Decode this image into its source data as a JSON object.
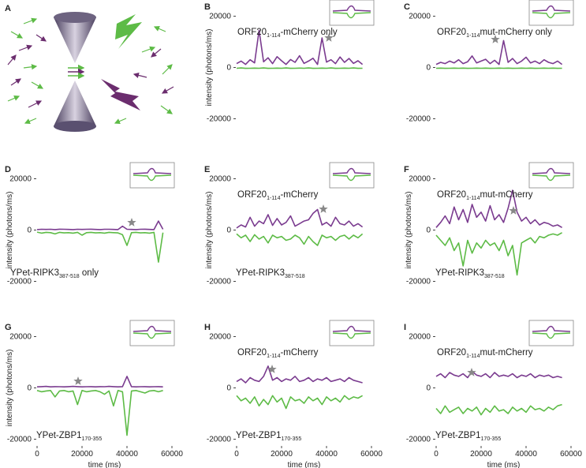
{
  "panel_a": {
    "letter": "A"
  },
  "chart_data": [
    {
      "type": "line",
      "panel": "B",
      "top_label": {
        "text": "ORF20",
        "sub": "1-114",
        "rest": "-mCherry only"
      },
      "ylabel": "intensity (photons/ms)",
      "xlim": [
        0,
        60000
      ],
      "ylim": [
        -22000,
        22000
      ],
      "yticks": [
        20000,
        0,
        -20000
      ],
      "x": [
        0,
        2000,
        4000,
        6000,
        8000,
        10000,
        12000,
        14000,
        16000,
        18000,
        20000,
        22000,
        24000,
        26000,
        28000,
        30000,
        32000,
        34000,
        36000,
        38000,
        40000,
        42000,
        44000,
        46000,
        48000,
        50000,
        52000,
        54000,
        56000
      ],
      "series": [
        {
          "color": "#5dbb46",
          "values": [
            -300,
            -200,
            -350,
            -300,
            -250,
            -300,
            -200,
            -350,
            -300,
            -250,
            -300,
            -200,
            -350,
            -300,
            -250,
            -300,
            -200,
            -350,
            -300,
            -250,
            -300,
            -200,
            -350,
            -300,
            -250,
            -300,
            -200,
            -350,
            -300
          ]
        },
        {
          "color": "#7a3b8f",
          "values": [
            1500,
            2500,
            1200,
            3000,
            1800,
            14500,
            2200,
            3800,
            1500,
            4200,
            2600,
            1200,
            3100,
            2000,
            4600,
            1600,
            2500,
            3600,
            1200,
            11500,
            2100,
            3000,
            1500,
            4100,
            2000,
            3500,
            1600,
            2600,
            1200
          ]
        }
      ]
    },
    {
      "type": "line",
      "panel": "C",
      "top_label": {
        "text": "ORF20",
        "sub": "1-114",
        "rest": "mut-mCherry only"
      },
      "xlim": [
        0,
        60000
      ],
      "ylim": [
        -22000,
        22000
      ],
      "yticks": [
        20000,
        0,
        -20000
      ],
      "x": [
        0,
        2000,
        4000,
        6000,
        8000,
        10000,
        12000,
        14000,
        16000,
        18000,
        20000,
        22000,
        24000,
        26000,
        28000,
        30000,
        32000,
        34000,
        36000,
        38000,
        40000,
        42000,
        44000,
        46000,
        48000,
        50000,
        52000,
        54000,
        56000
      ],
      "series": [
        {
          "color": "#5dbb46",
          "values": [
            -300,
            -250,
            -350,
            -300,
            -250,
            -300,
            -250,
            -350,
            -300,
            -250,
            -300,
            -250,
            -350,
            -300,
            -250,
            -300,
            -250,
            -350,
            -300,
            -250,
            -300,
            -250,
            -350,
            -300,
            -250,
            -300,
            -250,
            -350,
            -300
          ]
        },
        {
          "color": "#7a3b8f",
          "values": [
            1200,
            2000,
            1500,
            2500,
            1800,
            3000,
            1500,
            2200,
            4500,
            1800,
            2500,
            3200,
            1500,
            2800,
            1200,
            10500,
            2000,
            3500,
            1500,
            2500,
            4000,
            1800,
            2500,
            1500,
            3000,
            2000,
            1500,
            2500,
            1200
          ]
        }
      ]
    },
    {
      "type": "line",
      "panel": "D",
      "bottom_label": {
        "text": "YPet-RIPK3",
        "sub": "387-518",
        "rest": " only"
      },
      "ylabel": "intensity (photons/ms)",
      "xlim": [
        0,
        60000
      ],
      "ylim": [
        -22000,
        22000
      ],
      "yticks": [
        20000,
        0,
        -20000
      ],
      "x": [
        0,
        2000,
        4000,
        6000,
        8000,
        10000,
        12000,
        14000,
        16000,
        18000,
        20000,
        22000,
        24000,
        26000,
        28000,
        30000,
        32000,
        34000,
        36000,
        38000,
        40000,
        42000,
        44000,
        46000,
        48000,
        50000,
        52000,
        54000,
        56000
      ],
      "series": [
        {
          "color": "#5dbb46",
          "values": [
            -800,
            -1200,
            -900,
            -1000,
            -1500,
            -900,
            -1100,
            -1000,
            -1200,
            -900,
            -2000,
            -1000,
            -900,
            -1100,
            -1000,
            -1200,
            -900,
            -1000,
            -1100,
            -1800,
            -6000,
            -1000,
            -900,
            -1100,
            -1000,
            -1200,
            -900,
            -12500,
            -1000
          ]
        },
        {
          "color": "#7a3b8f",
          "values": [
            200,
            300,
            250,
            300,
            200,
            350,
            300,
            250,
            200,
            300,
            250,
            300,
            350,
            250,
            200,
            300,
            300,
            250,
            200,
            1500,
            300,
            250,
            200,
            300,
            350,
            250,
            200,
            3500,
            300
          ]
        }
      ]
    },
    {
      "type": "line",
      "panel": "E",
      "top_label": {
        "text": "ORF20",
        "sub": "1-114",
        "rest": "-mCherry"
      },
      "bottom_label": {
        "text": "YPet-RIPK3",
        "sub": "387-518",
        "rest": ""
      },
      "ylabel": "intensity (photons/ms)",
      "xlim": [
        0,
        60000
      ],
      "ylim": [
        -22000,
        22000
      ],
      "yticks": [
        20000,
        0,
        -20000
      ],
      "x": [
        0,
        2000,
        4000,
        6000,
        8000,
        10000,
        12000,
        14000,
        16000,
        18000,
        20000,
        22000,
        24000,
        26000,
        28000,
        30000,
        32000,
        34000,
        36000,
        38000,
        40000,
        42000,
        44000,
        46000,
        48000,
        50000,
        52000,
        54000,
        56000
      ],
      "series": [
        {
          "color": "#5dbb46",
          "values": [
            -1500,
            -3000,
            -2000,
            -4500,
            -1800,
            -3500,
            -2500,
            -5000,
            -2000,
            -3000,
            -2500,
            -4000,
            -3500,
            -2000,
            -3000,
            -5500,
            -2500,
            -4500,
            -6000,
            -2000,
            -3000,
            -2500,
            -4000,
            -2500,
            -2000,
            -3500,
            -2000,
            -3000,
            -1500
          ]
        },
        {
          "color": "#7a3b8f",
          "values": [
            800,
            2000,
            1200,
            5000,
            1500,
            3500,
            2500,
            6000,
            1800,
            4500,
            2000,
            3000,
            5500,
            1500,
            2500,
            3500,
            4000,
            6500,
            8000,
            2000,
            3000,
            1500,
            5000,
            2500,
            2000,
            3500,
            1500,
            2500,
            1200
          ]
        }
      ]
    },
    {
      "type": "line",
      "panel": "F",
      "top_label": {
        "text": "ORF20",
        "sub": "1-114",
        "rest": "mut-mCherry"
      },
      "bottom_label": {
        "text": "YPet-RIPK3",
        "sub": "387-518",
        "rest": ""
      },
      "ylabel": "intensity (photons/ms)",
      "xlim": [
        0,
        60000
      ],
      "ylim": [
        -22000,
        22000
      ],
      "yticks": [
        20000,
        0,
        -20000
      ],
      "x": [
        0,
        2000,
        4000,
        6000,
        8000,
        10000,
        12000,
        14000,
        16000,
        18000,
        20000,
        22000,
        24000,
        26000,
        28000,
        30000,
        32000,
        34000,
        36000,
        38000,
        40000,
        42000,
        44000,
        46000,
        48000,
        50000,
        52000,
        54000,
        56000
      ],
      "series": [
        {
          "color": "#5dbb46",
          "values": [
            -2000,
            -4000,
            -6000,
            -3000,
            -8000,
            -5000,
            -14000,
            -4000,
            -9000,
            -5000,
            -7000,
            -4000,
            -6000,
            -5000,
            -8000,
            -4000,
            -10000,
            -6000,
            -17500,
            -5000,
            -4000,
            -3000,
            -5000,
            -2500,
            -3000,
            -2000,
            -1500,
            -2000,
            -1000
          ]
        },
        {
          "color": "#7a3b8f",
          "values": [
            1000,
            3000,
            5500,
            2500,
            9000,
            4000,
            8000,
            3000,
            10000,
            5000,
            7000,
            3500,
            9500,
            4000,
            6000,
            3000,
            8500,
            15500,
            7000,
            3500,
            5000,
            2500,
            4000,
            2000,
            3000,
            2500,
            1500,
            2000,
            1000
          ]
        }
      ]
    },
    {
      "type": "line",
      "panel": "G",
      "bottom_label": {
        "text": "YPet-ZBP1",
        "sub": "170-355",
        "rest": ""
      },
      "ylabel": "intensity (photons/ms)",
      "xlabel": "time (ms)",
      "xlim": [
        0,
        60000
      ],
      "xticks": [
        0,
        20000,
        40000,
        60000
      ],
      "ylim": [
        -22000,
        22000
      ],
      "yticks": [
        20000,
        0,
        -20000
      ],
      "x": [
        0,
        2000,
        4000,
        6000,
        8000,
        10000,
        12000,
        14000,
        16000,
        18000,
        20000,
        22000,
        24000,
        26000,
        28000,
        30000,
        32000,
        34000,
        36000,
        38000,
        40000,
        42000,
        44000,
        46000,
        48000,
        50000,
        52000,
        54000,
        56000
      ],
      "series": [
        {
          "color": "#5dbb46",
          "values": [
            -1000,
            -1500,
            -1200,
            -1000,
            -3500,
            -1200,
            -1000,
            -1500,
            -1200,
            -6500,
            -1000,
            -1500,
            -1200,
            -1000,
            -1500,
            -2500,
            -1200,
            -7000,
            -1000,
            -1500,
            -18500,
            -1200,
            -1000,
            -1500,
            -2000,
            -1200,
            -1000,
            -1500,
            -1000
          ]
        },
        {
          "color": "#7a3b8f",
          "values": [
            400,
            500,
            600,
            400,
            500,
            450,
            400,
            500,
            600,
            500,
            400,
            450,
            500,
            400,
            500,
            450,
            600,
            500,
            400,
            500,
            4500,
            500,
            400,
            450,
            500,
            400,
            450,
            500,
            400
          ]
        }
      ]
    },
    {
      "type": "line",
      "panel": "H",
      "top_label": {
        "text": "ORF20",
        "sub": "1-114",
        "rest": "-mCherry"
      },
      "bottom_label": {
        "text": "YPet-ZBP1",
        "sub": "170-355",
        "rest": ""
      },
      "xlabel": "time (ms)",
      "xlim": [
        0,
        60000
      ],
      "xticks": [
        0,
        20000,
        40000,
        60000
      ],
      "ylim": [
        -22000,
        22000
      ],
      "yticks": [
        20000,
        0,
        -20000
      ],
      "x": [
        0,
        2000,
        4000,
        6000,
        8000,
        10000,
        12000,
        14000,
        16000,
        18000,
        20000,
        22000,
        24000,
        26000,
        28000,
        30000,
        32000,
        34000,
        36000,
        38000,
        40000,
        42000,
        44000,
        46000,
        48000,
        50000,
        52000,
        54000,
        56000
      ],
      "series": [
        {
          "color": "#5dbb46",
          "values": [
            -3000,
            -5000,
            -4000,
            -6000,
            -3500,
            -7000,
            -4500,
            -6500,
            -3000,
            -5500,
            -4000,
            -8000,
            -3500,
            -5000,
            -4500,
            -6000,
            -3500,
            -5000,
            -4000,
            -6500,
            -3500,
            -5000,
            -4000,
            -5500,
            -3000,
            -4500,
            -3500,
            -4000,
            -3000
          ]
        },
        {
          "color": "#7a3b8f",
          "values": [
            2500,
            3500,
            2000,
            4000,
            3000,
            2500,
            4500,
            8500,
            3000,
            4000,
            2500,
            3500,
            3000,
            4500,
            2500,
            3000,
            4000,
            2500,
            3500,
            3000,
            4000,
            2500,
            3000,
            3500,
            2500,
            4000,
            3000,
            2500,
            2000
          ]
        }
      ]
    },
    {
      "type": "line",
      "panel": "I",
      "top_label": {
        "text": "ORF20",
        "sub": "1-114",
        "rest": "mut-mCherry"
      },
      "bottom_label": {
        "text": "YPet-ZBP1",
        "sub": "170-355",
        "rest": ""
      },
      "xlabel": "time (ms)",
      "xlim": [
        0,
        60000
      ],
      "xticks": [
        0,
        20000,
        40000,
        60000
      ],
      "ylim": [
        -22000,
        22000
      ],
      "yticks": [
        20000,
        0,
        -20000
      ],
      "x": [
        0,
        2000,
        4000,
        6000,
        8000,
        10000,
        12000,
        14000,
        16000,
        18000,
        20000,
        22000,
        24000,
        26000,
        28000,
        30000,
        32000,
        34000,
        36000,
        38000,
        40000,
        42000,
        44000,
        46000,
        48000,
        50000,
        52000,
        54000,
        56000
      ],
      "series": [
        {
          "color": "#5dbb46",
          "values": [
            -8000,
            -10000,
            -7000,
            -9500,
            -8500,
            -7500,
            -10000,
            -8000,
            -9000,
            -7500,
            -10500,
            -8000,
            -9500,
            -7000,
            -9000,
            -8500,
            -10000,
            -7500,
            -9000,
            -8000,
            -9500,
            -7000,
            -8500,
            -8000,
            -9000,
            -7500,
            -8500,
            -7000,
            -6500
          ]
        },
        {
          "color": "#7a3b8f",
          "values": [
            4500,
            5500,
            4000,
            6000,
            5000,
            4500,
            5500,
            4000,
            6500,
            5000,
            4500,
            5500,
            4000,
            6000,
            4500,
            5000,
            4500,
            5500,
            4000,
            5000,
            4500,
            5500,
            4000,
            5000,
            4500,
            5000,
            4000,
            4500,
            4000
          ]
        }
      ]
    }
  ]
}
